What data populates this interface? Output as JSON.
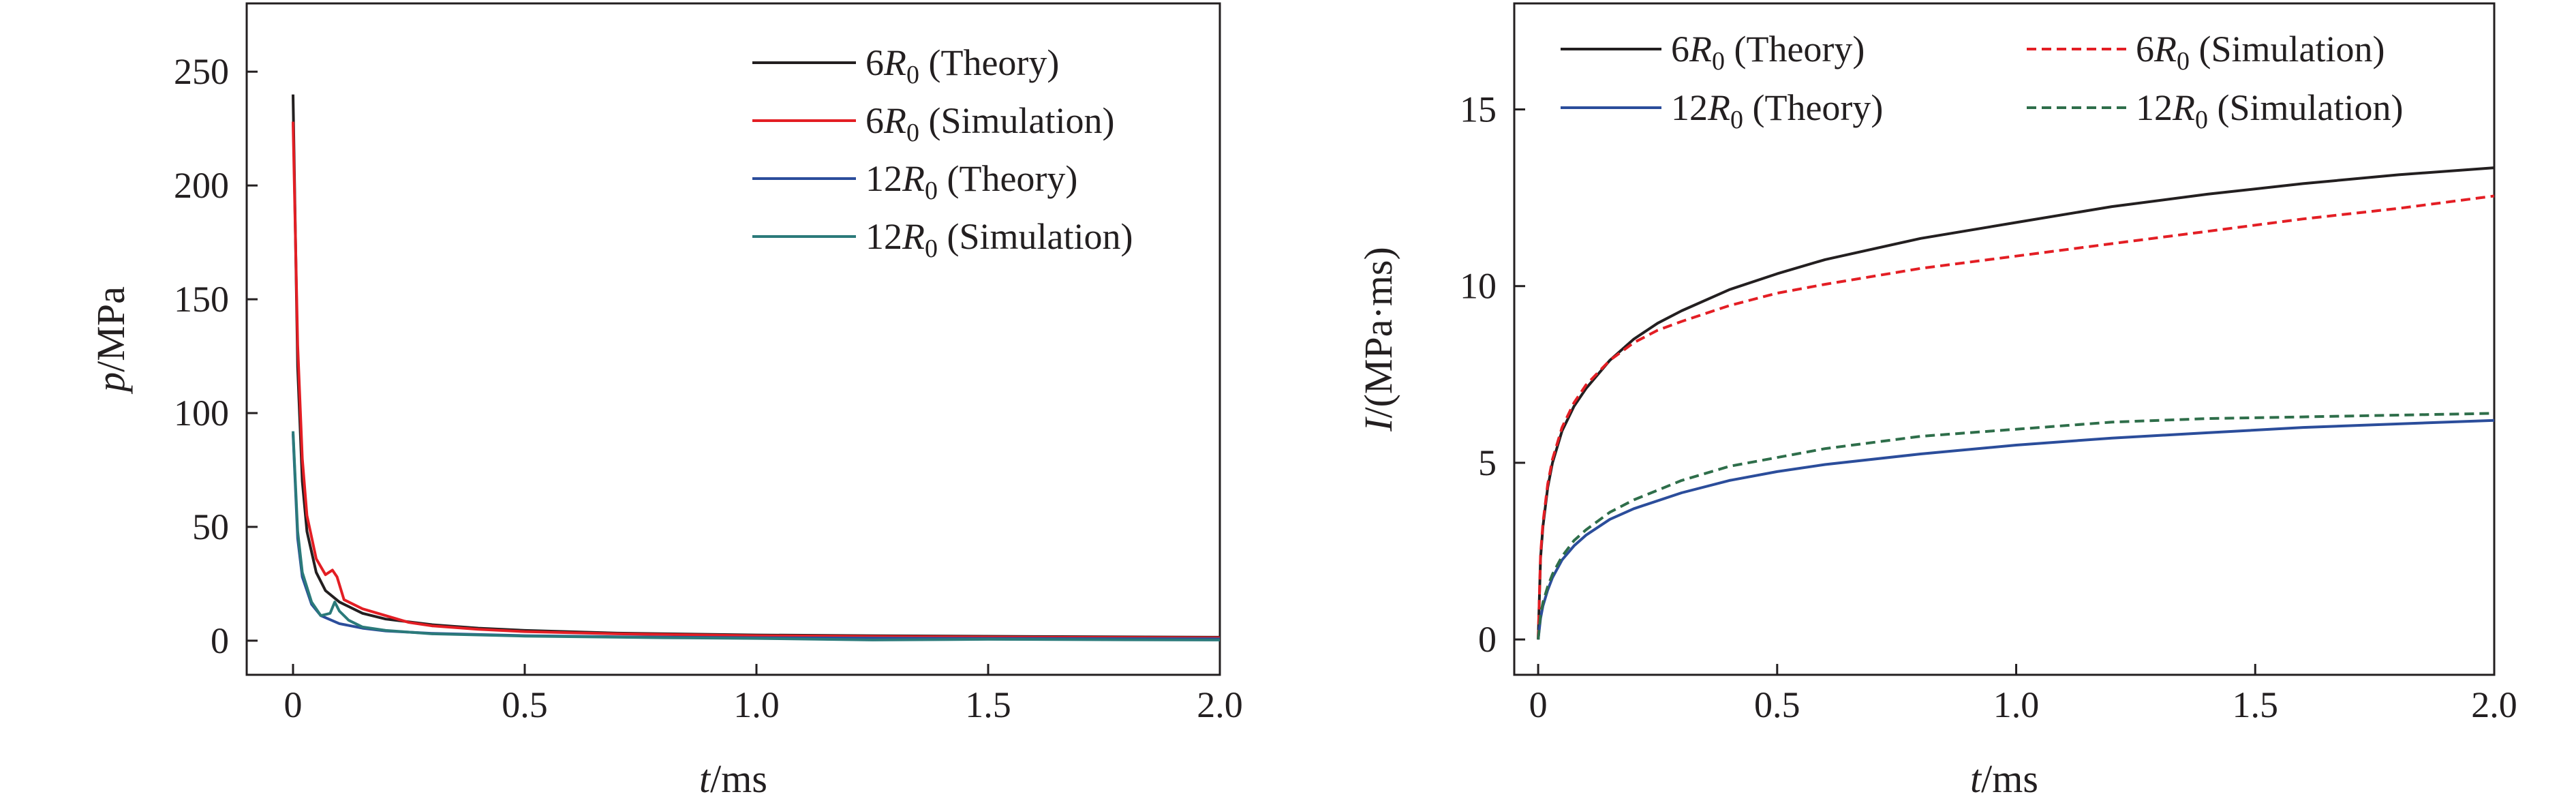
{
  "chart_data": [
    {
      "type": "line",
      "panel": "left",
      "title": "",
      "xlabel": {
        "var": "t",
        "unit": "/ms"
      },
      "ylabel": {
        "var": "p",
        "unit": "/MPa"
      },
      "xlim": [
        -0.1,
        2.0
      ],
      "ylim": [
        -15,
        280
      ],
      "xticks": [
        0,
        0.5,
        1.0,
        1.5,
        2.0
      ],
      "xtick_labels": [
        "0",
        "0.5",
        "1.0",
        "1.5",
        "2.0"
      ],
      "yticks": [
        0,
        50,
        100,
        150,
        200,
        250
      ],
      "ytick_labels": [
        "0",
        "50",
        "100",
        "150",
        "200",
        "250"
      ],
      "legend_position": "top-right",
      "series": [
        {
          "name": "6R0 (Theory)",
          "legend": {
            "prefix": "6",
            "var": "R",
            "sub": "0",
            "suffix": " (Theory)"
          },
          "color": "#231f20",
          "dash": "solid",
          "x": [
            0,
            0.01,
            0.02,
            0.03,
            0.05,
            0.07,
            0.1,
            0.15,
            0.2,
            0.3,
            0.4,
            0.5,
            0.7,
            1.0,
            1.3,
            1.6,
            2.0
          ],
          "y": [
            240,
            120,
            70,
            48,
            30,
            22,
            17,
            12,
            9.5,
            7,
            5.5,
            4.5,
            3.3,
            2.5,
            2.1,
            1.8,
            1.5
          ]
        },
        {
          "name": "6R0 (Simulation)",
          "legend": {
            "prefix": "6",
            "var": "R",
            "sub": "0",
            "suffix": " (Simulation)"
          },
          "color": "#e31e24",
          "dash": "solid",
          "x": [
            0,
            0.01,
            0.02,
            0.03,
            0.05,
            0.07,
            0.085,
            0.095,
            0.11,
            0.15,
            0.2,
            0.25,
            0.3,
            0.4,
            0.5,
            0.7,
            1.0,
            1.3,
            1.6,
            2.0
          ],
          "y": [
            228,
            130,
            80,
            55,
            36,
            29,
            31,
            28,
            18,
            14,
            11,
            8,
            6.5,
            5,
            4,
            3,
            2.2,
            1.8,
            1.5,
            1.3
          ]
        },
        {
          "name": "12R0 (Theory)",
          "legend": {
            "prefix": "12",
            "var": "R",
            "sub": "0",
            "suffix": " (Theory)"
          },
          "color": "#2b4d9b",
          "dash": "solid",
          "x": [
            0,
            0.01,
            0.02,
            0.04,
            0.06,
            0.1,
            0.15,
            0.2,
            0.3,
            0.5,
            0.7,
            1.0,
            1.5,
            2.0
          ],
          "y": [
            91,
            45,
            28,
            16,
            11,
            7.5,
            5.5,
            4.3,
            3.2,
            2.2,
            1.7,
            1.3,
            1.0,
            0.8
          ]
        },
        {
          "name": "12R0 (Simulation)",
          "legend": {
            "prefix": "12",
            "var": "R",
            "sub": "0",
            "suffix": " (Simulation)"
          },
          "color": "#2b7a7a",
          "dash": "solid",
          "x": [
            0,
            0.01,
            0.02,
            0.04,
            0.06,
            0.08,
            0.09,
            0.1,
            0.12,
            0.15,
            0.2,
            0.3,
            0.5,
            0.8,
            1.0,
            1.25,
            1.5,
            1.8,
            2.0
          ],
          "y": [
            92,
            48,
            30,
            17,
            11,
            12,
            17,
            13,
            9,
            6,
            4.5,
            3,
            2,
            1.3,
            1,
            0.3,
            0.6,
            0.4,
            0.3
          ]
        }
      ]
    },
    {
      "type": "line",
      "panel": "right",
      "title": "",
      "xlabel": {
        "var": "t",
        "unit": "/ms"
      },
      "ylabel": {
        "var": "I",
        "unit": "/(MPa·ms)"
      },
      "xlim": [
        -0.05,
        2.0
      ],
      "ylim": [
        -1,
        18
      ],
      "xticks": [
        0,
        0.5,
        1.0,
        1.5,
        2.0
      ],
      "xtick_labels": [
        "0",
        "0.5",
        "1.0",
        "1.5",
        "2.0"
      ],
      "yticks": [
        0,
        5,
        10,
        15
      ],
      "ytick_labels": [
        "0",
        "5",
        "10",
        "15"
      ],
      "legend_position": "top",
      "series": [
        {
          "name": "6R0 (Theory)",
          "legend": {
            "prefix": "6",
            "var": "R",
            "sub": "0",
            "suffix": " (Theory)"
          },
          "color": "#231f20",
          "dash": "solid",
          "x": [
            0,
            0.005,
            0.01,
            0.02,
            0.03,
            0.05,
            0.075,
            0.1,
            0.15,
            0.2,
            0.25,
            0.3,
            0.4,
            0.5,
            0.6,
            0.8,
            1.0,
            1.2,
            1.4,
            1.6,
            1.8,
            2.0
          ],
          "y": [
            0,
            2.3,
            3.2,
            4.3,
            5.0,
            5.9,
            6.6,
            7.1,
            7.9,
            8.5,
            8.95,
            9.3,
            9.9,
            10.35,
            10.75,
            11.35,
            11.8,
            12.25,
            12.6,
            12.9,
            13.15,
            13.35
          ]
        },
        {
          "name": "6R0 (Simulation)",
          "legend": {
            "prefix": "6",
            "var": "R",
            "sub": "0",
            "suffix": " (Simulation)"
          },
          "color": "#e31e24",
          "dash": "dashed",
          "x": [
            0,
            0.005,
            0.01,
            0.02,
            0.03,
            0.05,
            0.075,
            0.1,
            0.15,
            0.2,
            0.25,
            0.3,
            0.4,
            0.5,
            0.6,
            0.8,
            1.0,
            1.2,
            1.4,
            1.6,
            1.8,
            2.0
          ],
          "y": [
            0,
            2.4,
            3.3,
            4.4,
            5.1,
            6.0,
            6.7,
            7.2,
            7.9,
            8.4,
            8.75,
            9.0,
            9.45,
            9.8,
            10.05,
            10.5,
            10.85,
            11.2,
            11.55,
            11.9,
            12.2,
            12.55
          ]
        },
        {
          "name": "12R0 (Theory)",
          "legend": {
            "prefix": "12",
            "var": "R",
            "sub": "0",
            "suffix": " (Theory)"
          },
          "color": "#2b4d9b",
          "dash": "solid",
          "x": [
            0,
            0.005,
            0.01,
            0.02,
            0.03,
            0.05,
            0.075,
            0.1,
            0.15,
            0.2,
            0.3,
            0.4,
            0.5,
            0.6,
            0.8,
            1.0,
            1.2,
            1.4,
            1.6,
            1.8,
            2.0
          ],
          "y": [
            0,
            0.6,
            0.95,
            1.4,
            1.75,
            2.25,
            2.65,
            2.95,
            3.4,
            3.7,
            4.15,
            4.5,
            4.75,
            4.95,
            5.25,
            5.5,
            5.7,
            5.85,
            6.0,
            6.1,
            6.2
          ]
        },
        {
          "name": "12R0 (Simulation)",
          "legend": {
            "prefix": "12",
            "var": "R",
            "sub": "0",
            "suffix": " (Simulation)"
          },
          "color": "#2e6e4a",
          "dash": "dashed",
          "x": [
            0,
            0.005,
            0.01,
            0.02,
            0.03,
            0.05,
            0.075,
            0.1,
            0.15,
            0.2,
            0.3,
            0.4,
            0.5,
            0.6,
            0.8,
            1.0,
            1.2,
            1.4,
            1.6,
            1.8,
            2.0
          ],
          "y": [
            0,
            0.7,
            1.05,
            1.5,
            1.85,
            2.35,
            2.8,
            3.1,
            3.6,
            3.95,
            4.5,
            4.9,
            5.15,
            5.4,
            5.75,
            5.95,
            6.15,
            6.25,
            6.3,
            6.35,
            6.4
          ]
        }
      ]
    }
  ]
}
